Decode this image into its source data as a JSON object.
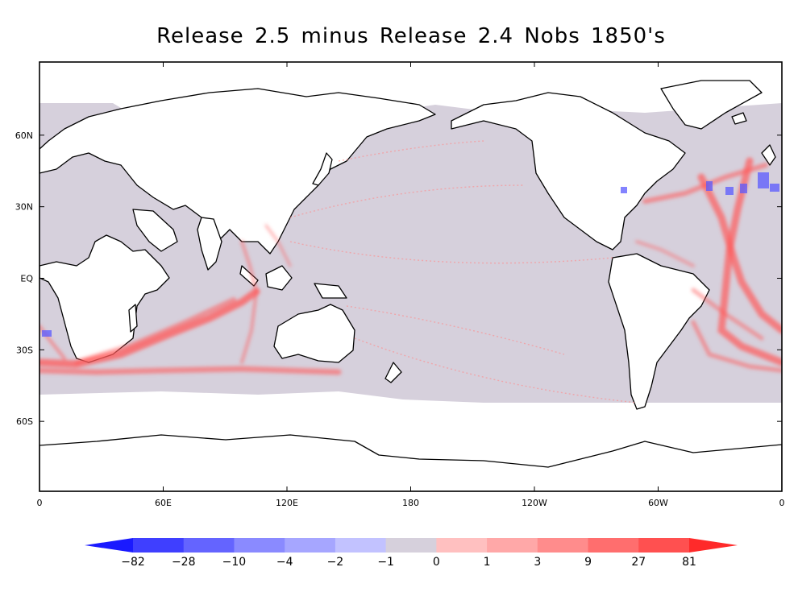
{
  "title": "Release 2.5 minus Release 2.4  Nobs 1850's",
  "map": {
    "x_ticks": [
      {
        "lon": 0,
        "label": "0"
      },
      {
        "lon": 60,
        "label": "60E"
      },
      {
        "lon": 120,
        "label": "120E"
      },
      {
        "lon": 180,
        "label": "180"
      },
      {
        "lon": 240,
        "label": "120W"
      },
      {
        "lon": 300,
        "label": "60W"
      },
      {
        "lon": 360,
        "label": "0"
      }
    ],
    "y_ticks": [
      {
        "lat": 60,
        "label": "60N"
      },
      {
        "lat": 30,
        "label": "30N"
      },
      {
        "lat": 0,
        "label": "EQ"
      },
      {
        "lat": -30,
        "label": "30S"
      },
      {
        "lat": -60,
        "label": "60S"
      }
    ],
    "lon_range": [
      0,
      360
    ],
    "lat_range": [
      -90,
      90
    ]
  },
  "colorbar": {
    "labels": [
      "-82",
      "-28",
      "-10",
      "-4",
      "-2",
      "-1",
      "0",
      "1",
      "3",
      "9",
      "27",
      "81"
    ],
    "colors": [
      "#1a1aff",
      "#3f3fff",
      "#6464ff",
      "#8a8aff",
      "#a6a6ff",
      "#c2c2ff",
      "#d6d0dc",
      "#ffc0c0",
      "#ffa8a8",
      "#ff8c8c",
      "#ff6e6e",
      "#ff5050",
      "#ff2a2a"
    ]
  },
  "colors": {
    "land": "#ffffff",
    "ocean_zero": "#d6d0dc",
    "shipping_red": "#ff6a6a",
    "negative_blue": "#5a5aff"
  }
}
